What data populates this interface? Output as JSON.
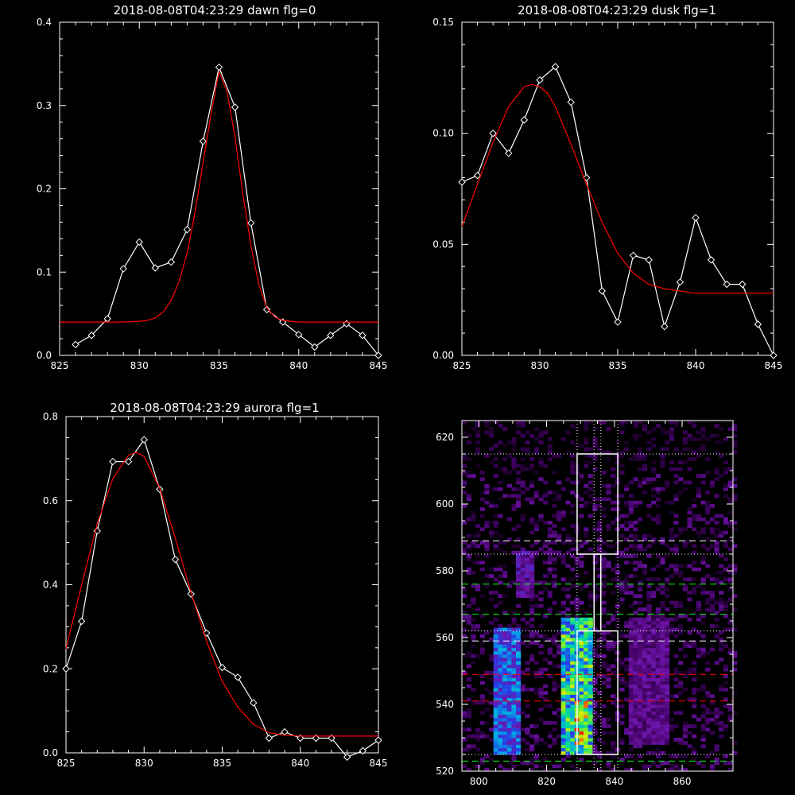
{
  "chart_data": [
    {
      "type": "line",
      "title": "2018-08-08T04:23:29 dawn flg=0",
      "xlim": [
        825,
        845
      ],
      "ylim": [
        0,
        0.4
      ],
      "xticks": [
        "825",
        "830",
        "835",
        "840",
        "845"
      ],
      "yticks": [
        "0.0",
        "0.1",
        "0.2",
        "0.3",
        "0.4"
      ],
      "series": [
        {
          "color": "#ffffff",
          "marker": "diamond",
          "x": [
            826,
            827,
            828,
            829,
            830,
            831,
            832,
            833,
            834,
            835,
            836,
            837,
            838,
            839,
            840,
            841,
            842,
            843,
            844,
            845
          ],
          "y": [
            0.013,
            0.024,
            0.044,
            0.104,
            0.136,
            0.105,
            0.112,
            0.151,
            0.257,
            0.346,
            0.298,
            0.159,
            0.055,
            0.04,
            0.025,
            0.01,
            0.024,
            0.038,
            0.024,
            0.0
          ]
        },
        {
          "color": "#ff0000",
          "x": [
            825,
            826,
            827,
            828,
            829,
            830,
            830.5,
            831,
            831.5,
            832,
            832.5,
            833,
            833.5,
            834,
            834.5,
            835,
            835.5,
            836,
            836.5,
            837,
            837.5,
            838,
            838.5,
            839,
            840,
            841,
            842,
            843,
            844,
            845
          ],
          "y": [
            0.04,
            0.04,
            0.04,
            0.04,
            0.04,
            0.041,
            0.042,
            0.045,
            0.052,
            0.066,
            0.089,
            0.123,
            0.172,
            0.232,
            0.29,
            0.341,
            0.317,
            0.262,
            0.193,
            0.132,
            0.085,
            0.057,
            0.046,
            0.042,
            0.04,
            0.04,
            0.04,
            0.04,
            0.04,
            0.04
          ]
        }
      ]
    },
    {
      "type": "line",
      "title": "2018-08-08T04:23:29 dusk flg=1",
      "xlim": [
        825,
        845
      ],
      "ylim": [
        0,
        0.15
      ],
      "xticks": [
        "825",
        "830",
        "835",
        "840",
        "845"
      ],
      "yticks": [
        "0.00",
        "0.05",
        "0.10",
        "0.15"
      ],
      "series": [
        {
          "color": "#ffffff",
          "marker": "diamond",
          "x": [
            825,
            826,
            827,
            828,
            829,
            830,
            831,
            832,
            833,
            834,
            835,
            836,
            837,
            838,
            839,
            840,
            841,
            842,
            843,
            844,
            845
          ],
          "y": [
            0.078,
            0.081,
            0.1,
            0.091,
            0.106,
            0.124,
            0.13,
            0.114,
            0.08,
            0.029,
            0.015,
            0.045,
            0.043,
            0.013,
            0.033,
            0.062,
            0.043,
            0.032,
            0.032,
            0.014,
            0.0
          ]
        },
        {
          "color": "#ff0000",
          "x": [
            825,
            826,
            827,
            828,
            829,
            829.5,
            830,
            830.5,
            831,
            832,
            833,
            834,
            835,
            836,
            837,
            838,
            839,
            840,
            841,
            842,
            843,
            844,
            845
          ],
          "y": [
            0.058,
            0.077,
            0.096,
            0.112,
            0.121,
            0.122,
            0.121,
            0.118,
            0.112,
            0.095,
            0.077,
            0.06,
            0.046,
            0.037,
            0.032,
            0.03,
            0.029,
            0.028,
            0.028,
            0.028,
            0.028,
            0.028,
            0.028
          ]
        }
      ]
    },
    {
      "type": "line",
      "title": "2018-08-08T04:23:29 aurora flg=1",
      "xlim": [
        825,
        845
      ],
      "ylim": [
        0,
        0.8
      ],
      "xticks": [
        "825",
        "830",
        "835",
        "840",
        "845"
      ],
      "yticks": [
        "0.0",
        "0.2",
        "0.4",
        "0.6",
        "0.8"
      ],
      "series": [
        {
          "color": "#ffffff",
          "marker": "diamond",
          "x": [
            825,
            826,
            827,
            828,
            829,
            830,
            831,
            832,
            833,
            834,
            835,
            836,
            837,
            838,
            839,
            840,
            841,
            842,
            843,
            844,
            845
          ],
          "y": [
            0.2,
            0.313,
            0.528,
            0.693,
            0.693,
            0.745,
            0.627,
            0.46,
            0.378,
            0.285,
            0.203,
            0.18,
            0.119,
            0.035,
            0.05,
            0.035,
            0.035,
            0.035,
            -0.01,
            0.005,
            0.03
          ]
        },
        {
          "color": "#ff0000",
          "x": [
            825,
            826,
            827,
            828,
            829,
            829.5,
            830,
            831,
            832,
            833,
            834,
            835,
            836,
            837,
            838,
            839,
            840,
            841,
            842,
            843,
            844,
            845
          ],
          "y": [
            0.248,
            0.4,
            0.545,
            0.652,
            0.708,
            0.715,
            0.705,
            0.629,
            0.511,
            0.382,
            0.265,
            0.17,
            0.109,
            0.068,
            0.048,
            0.042,
            0.04,
            0.04,
            0.04,
            0.04,
            0.04,
            0.04
          ]
        }
      ]
    },
    {
      "type": "heatmap",
      "xlim": [
        795,
        875
      ],
      "ylim": [
        520,
        625
      ],
      "xticks": [
        "800",
        "820",
        "840",
        "860"
      ],
      "yticks": [
        "520",
        "540",
        "560",
        "580",
        "600",
        "620"
      ],
      "bright_columns": [
        {
          "x_center": 808,
          "width": 8,
          "y_range": [
            525,
            562
          ],
          "intensity": 0.55
        },
        {
          "x_center": 828,
          "width": 10,
          "y_range": [
            525,
            565
          ],
          "intensity": 0.85
        },
        {
          "x_center": 830,
          "width": 4,
          "y_range": [
            528,
            540
          ],
          "intensity": 1.0
        },
        {
          "x_center": 849,
          "width": 12,
          "y_range": [
            528,
            565
          ],
          "intensity": 0.25
        },
        {
          "x_center": 813,
          "width": 6,
          "y_range": [
            572,
            585
          ],
          "intensity": 0.3
        }
      ],
      "boxes": [
        {
          "x": [
            829,
            841
          ],
          "y": [
            585,
            615
          ]
        },
        {
          "x": [
            834,
            836
          ],
          "y": [
            562,
            585
          ]
        },
        {
          "x": [
            829,
            841
          ],
          "y": [
            525,
            562
          ]
        }
      ],
      "vertical_dotted_lines": [
        829,
        834,
        836,
        841
      ],
      "horizontal_dotted_lines": [
        615,
        585,
        562,
        525
      ],
      "dashed_lines": [
        {
          "y": 589,
          "color": "#ffffff"
        },
        {
          "y": 559,
          "color": "#ffffff"
        },
        {
          "y": 576,
          "color": "#00ff00"
        },
        {
          "y": 567,
          "color": "#00ff00"
        },
        {
          "y": 523,
          "color": "#00ff00"
        },
        {
          "y": 549,
          "color": "#ff0000"
        },
        {
          "y": 541,
          "color": "#ff0000"
        }
      ]
    }
  ]
}
